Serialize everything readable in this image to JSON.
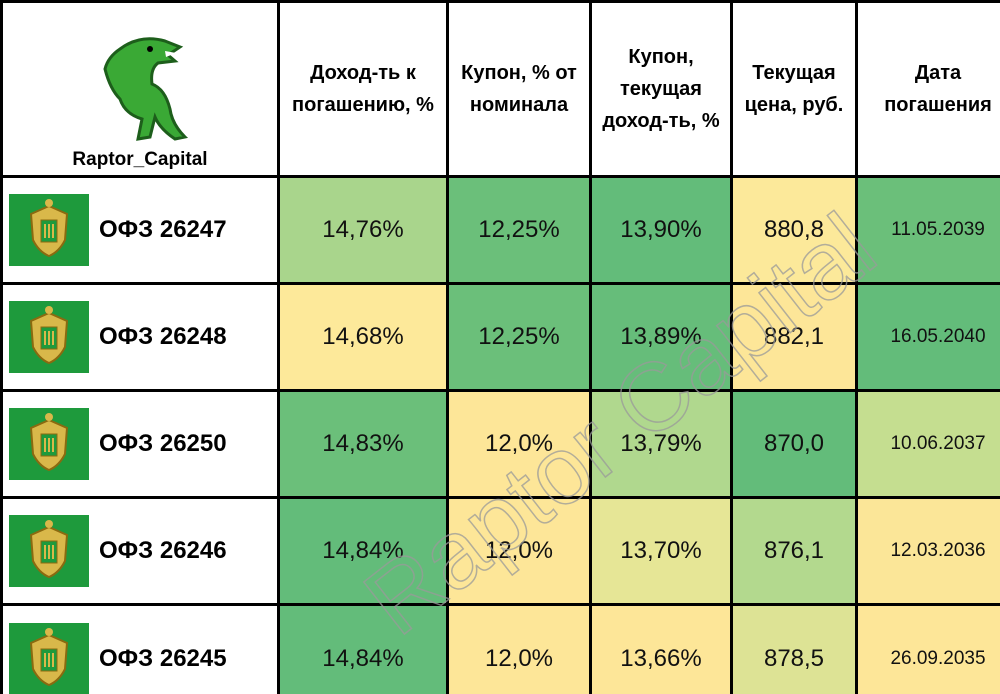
{
  "table": {
    "brand": "Raptor_Capital",
    "header": [
      "Доход-ть к погашению, %",
      "Купон, % от номинала",
      "Купон, текущая доход-ть, %",
      "Текущая цена, руб.",
      "Дата погашения"
    ],
    "rows": [
      [
        "ОФЗ 26247",
        "14,76%",
        "12,25%",
        "13,90%",
        "880,8",
        "11.05.2039"
      ],
      [
        "ОФЗ 26248",
        "14,68%",
        "12,25%",
        "13,89%",
        "882,1",
        "16.05.2040"
      ],
      [
        "ОФЗ 26250",
        "14,83%",
        "12,0%",
        "13,79%",
        "870,0",
        "10.06.2037"
      ],
      [
        "ОФЗ 26246",
        "14,84%",
        "12,0%",
        "13,70%",
        "876,1",
        "12.03.2036"
      ],
      [
        "ОФЗ 26245",
        "14,84%",
        "12,0%",
        "13,66%",
        "878,5",
        "26.09.2035"
      ]
    ],
    "colors": [
      [
        "#a9d58c",
        "#6bbf7a",
        "#63bc7a",
        "#fce99a",
        "#6bbf7a"
      ],
      [
        "#fde99a",
        "#6bbf7a",
        "#66bd7a",
        "#fde698",
        "#63bc7a"
      ],
      [
        "#6bbf7a",
        "#fde698",
        "#b0d88e",
        "#63bc7a",
        "#c5de90"
      ],
      [
        "#63bc7a",
        "#fde698",
        "#e6e696",
        "#b3d98e",
        "#fbe698"
      ],
      [
        "#63bc7a",
        "#fde698",
        "#fde698",
        "#dde395",
        "#fde698"
      ]
    ]
  },
  "watermark": "Raptor Capital"
}
